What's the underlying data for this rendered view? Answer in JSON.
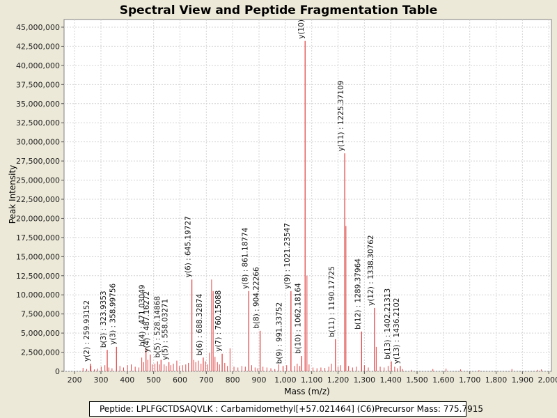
{
  "chart_data": {
    "type": "bar",
    "title": "Spectral View and Peptide Fragmentation Table",
    "xlabel": "Mass (m/z)",
    "ylabel": "Peak Intensity",
    "xlim": [
      160,
      2010
    ],
    "ylim": [
      0,
      46000000
    ],
    "x_ticks": [
      200,
      300,
      400,
      500,
      600,
      700,
      800,
      900,
      1000,
      1100,
      1200,
      1300,
      1400,
      1500,
      1600,
      1700,
      1800,
      1900,
      2000
    ],
    "x_tick_labels": [
      "200",
      "300",
      "400",
      "500",
      "600",
      "700",
      "800",
      "900",
      "1,000",
      "1,100",
      "1,200",
      "1,300",
      "1,400",
      "1,500",
      "1,600",
      "1,700",
      "1,800",
      "1,900",
      "2,000"
    ],
    "y_ticks": [
      0,
      2500000,
      5000000,
      7500000,
      10000000,
      12500000,
      15000000,
      17500000,
      20000000,
      22500000,
      25000000,
      27500000,
      30000000,
      32500000,
      35000000,
      37500000,
      40000000,
      42500000,
      45000000
    ],
    "y_tick_labels": [
      "0",
      "2,500,000",
      "5,000,000",
      "7,500,000",
      "10,000,000",
      "12,500,000",
      "15,000,000",
      "17,500,000",
      "20,000,000",
      "22,500,000",
      "25,000,000",
      "27,500,000",
      "30,000,000",
      "32,500,000",
      "35,000,000",
      "37,500,000",
      "40,000,000",
      "42,500,000",
      "45,000,000"
    ],
    "grid": true,
    "annotated_peaks": [
      {
        "mz": 259.93152,
        "intensity": 1000000,
        "label": "y(2) : 259.93152"
      },
      {
        "mz": 323.9353,
        "intensity": 2800000,
        "label": "b(3) : 323.9353"
      },
      {
        "mz": 358.99756,
        "intensity": 3200000,
        "label": "y(3) : 358.99756"
      },
      {
        "mz": 471.03049,
        "intensity": 3000000,
        "label": "b(4) : 471.03049"
      },
      {
        "mz": 487.16272,
        "intensity": 2200000,
        "label": "y(4) : 487.16272"
      },
      {
        "mz": 528.14868,
        "intensity": 1500000,
        "label": "b(5) : 528.14868"
      },
      {
        "mz": 558.03271,
        "intensity": 1200000,
        "label": "y(5) : 558.03271"
      },
      {
        "mz": 645.19727,
        "intensity": 12000000,
        "label": "y(6) : 645.19727"
      },
      {
        "mz": 688.32874,
        "intensity": 1800000,
        "label": "b(6) : 688.32874"
      },
      {
        "mz": 760.15088,
        "intensity": 2300000,
        "label": "y(7) : 760.15088"
      },
      {
        "mz": 861.18774,
        "intensity": 10500000,
        "label": "y(8) : 861.18774"
      },
      {
        "mz": 904.22266,
        "intensity": 5300000,
        "label": "b(8) : 904.22266"
      },
      {
        "mz": 991.33752,
        "intensity": 700000,
        "label": "b(9) : 991.33752"
      },
      {
        "mz": 1021.23547,
        "intensity": 10500000,
        "label": "y(9) : 1021.23547"
      },
      {
        "mz": 1062.18164,
        "intensity": 2000000,
        "label": "b(10) : 1062.18164"
      },
      {
        "mz": 1075.0,
        "intensity": 43200000,
        "label": "y(10)"
      },
      {
        "mz": 1190.17725,
        "intensity": 4200000,
        "label": "b(11) : 1190.17725"
      },
      {
        "mz": 1225.37109,
        "intensity": 28500000,
        "label": "y(11) : 1225.37109"
      },
      {
        "mz": 1289.37964,
        "intensity": 5200000,
        "label": "b(12) : 1289.37964"
      },
      {
        "mz": 1338.30762,
        "intensity": 8300000,
        "label": "y(12) : 1338.30762"
      },
      {
        "mz": 1402.21313,
        "intensity": 1300000,
        "label": "b(13) : 1402.21313"
      },
      {
        "mz": 1436.2102,
        "intensity": 700000,
        "label": "y(13) : 1436.2102"
      }
    ],
    "other_peaks": [
      {
        "mz": 232,
        "intensity": 450000
      },
      {
        "mz": 246,
        "intensity": 300000
      },
      {
        "mz": 262,
        "intensity": 700000
      },
      {
        "mz": 275,
        "intensity": 250000
      },
      {
        "mz": 288,
        "intensity": 350000
      },
      {
        "mz": 301,
        "intensity": 600000
      },
      {
        "mz": 315,
        "intensity": 800000
      },
      {
        "mz": 330,
        "intensity": 500000
      },
      {
        "mz": 342,
        "intensity": 400000
      },
      {
        "mz": 372,
        "intensity": 700000
      },
      {
        "mz": 386,
        "intensity": 500000
      },
      {
        "mz": 401,
        "intensity": 800000
      },
      {
        "mz": 415,
        "intensity": 900000
      },
      {
        "mz": 430,
        "intensity": 600000
      },
      {
        "mz": 444,
        "intensity": 500000
      },
      {
        "mz": 455,
        "intensity": 1800000
      },
      {
        "mz": 462,
        "intensity": 1200000
      },
      {
        "mz": 478,
        "intensity": 1500000
      },
      {
        "mz": 495,
        "intensity": 900000
      },
      {
        "mz": 505,
        "intensity": 1000000
      },
      {
        "mz": 515,
        "intensity": 1300000
      },
      {
        "mz": 522,
        "intensity": 900000
      },
      {
        "mz": 540,
        "intensity": 900000
      },
      {
        "mz": 548,
        "intensity": 700000
      },
      {
        "mz": 565,
        "intensity": 800000
      },
      {
        "mz": 575,
        "intensity": 1000000
      },
      {
        "mz": 588,
        "intensity": 1400000
      },
      {
        "mz": 598,
        "intensity": 700000
      },
      {
        "mz": 610,
        "intensity": 800000
      },
      {
        "mz": 622,
        "intensity": 900000
      },
      {
        "mz": 632,
        "intensity": 1100000
      },
      {
        "mz": 652,
        "intensity": 1500000
      },
      {
        "mz": 660,
        "intensity": 1200000
      },
      {
        "mz": 670,
        "intensity": 1400000
      },
      {
        "mz": 680,
        "intensity": 1000000
      },
      {
        "mz": 697,
        "intensity": 1300000
      },
      {
        "mz": 705,
        "intensity": 900000
      },
      {
        "mz": 712,
        "intensity": 2400000
      },
      {
        "mz": 720,
        "intensity": 12000000
      },
      {
        "mz": 726,
        "intensity": 10500000
      },
      {
        "mz": 733,
        "intensity": 1900000
      },
      {
        "mz": 742,
        "intensity": 1200000
      },
      {
        "mz": 750,
        "intensity": 900000
      },
      {
        "mz": 770,
        "intensity": 1100000
      },
      {
        "mz": 780,
        "intensity": 700000
      },
      {
        "mz": 790,
        "intensity": 3000000
      },
      {
        "mz": 805,
        "intensity": 600000
      },
      {
        "mz": 820,
        "intensity": 500000
      },
      {
        "mz": 835,
        "intensity": 700000
      },
      {
        "mz": 848,
        "intensity": 600000
      },
      {
        "mz": 872,
        "intensity": 800000
      },
      {
        "mz": 885,
        "intensity": 500000
      },
      {
        "mz": 895,
        "intensity": 400000
      },
      {
        "mz": 915,
        "intensity": 600000
      },
      {
        "mz": 930,
        "intensity": 500000
      },
      {
        "mz": 945,
        "intensity": 400000
      },
      {
        "mz": 960,
        "intensity": 300000
      },
      {
        "mz": 975,
        "intensity": 900000
      },
      {
        "mz": 1005,
        "intensity": 800000
      },
      {
        "mz": 1035,
        "intensity": 700000
      },
      {
        "mz": 1045,
        "intensity": 1000000
      },
      {
        "mz": 1055,
        "intensity": 700000
      },
      {
        "mz": 1082,
        "intensity": 12500000
      },
      {
        "mz": 1090,
        "intensity": 900000
      },
      {
        "mz": 1105,
        "intensity": 500000
      },
      {
        "mz": 1120,
        "intensity": 400000
      },
      {
        "mz": 1135,
        "intensity": 500000
      },
      {
        "mz": 1150,
        "intensity": 450000
      },
      {
        "mz": 1165,
        "intensity": 600000
      },
      {
        "mz": 1175,
        "intensity": 1000000
      },
      {
        "mz": 1200,
        "intensity": 600000
      },
      {
        "mz": 1210,
        "intensity": 800000
      },
      {
        "mz": 1230,
        "intensity": 19000000
      },
      {
        "mz": 1240,
        "intensity": 700000
      },
      {
        "mz": 1255,
        "intensity": 500000
      },
      {
        "mz": 1270,
        "intensity": 600000
      },
      {
        "mz": 1300,
        "intensity": 800000
      },
      {
        "mz": 1315,
        "intensity": 500000
      },
      {
        "mz": 1345,
        "intensity": 3200000
      },
      {
        "mz": 1360,
        "intensity": 600000
      },
      {
        "mz": 1375,
        "intensity": 500000
      },
      {
        "mz": 1390,
        "intensity": 700000
      },
      {
        "mz": 1415,
        "intensity": 600000
      },
      {
        "mz": 1425,
        "intensity": 400000
      },
      {
        "mz": 1445,
        "intensity": 300000
      },
      {
        "mz": 1480,
        "intensity": 200000
      },
      {
        "mz": 1560,
        "intensity": 300000
      },
      {
        "mz": 1610,
        "intensity": 350000
      },
      {
        "mz": 1665,
        "intensity": 250000
      },
      {
        "mz": 1735,
        "intensity": 150000
      },
      {
        "mz": 1860,
        "intensity": 300000
      },
      {
        "mz": 1958,
        "intensity": 200000
      },
      {
        "mz": 1972,
        "intensity": 250000
      }
    ],
    "colors": {
      "peak": "#e04848",
      "plot_background": "#ffffff",
      "grid": "#d4d4d4",
      "window_background": "#ece9d8"
    }
  },
  "legend": {
    "peptide": "Peptide: LPLFGCTDSAQVLK : Carbamidomethyl[+57.021464] (C6)",
    "precursor": "Precursor Mass: 775.7915"
  }
}
